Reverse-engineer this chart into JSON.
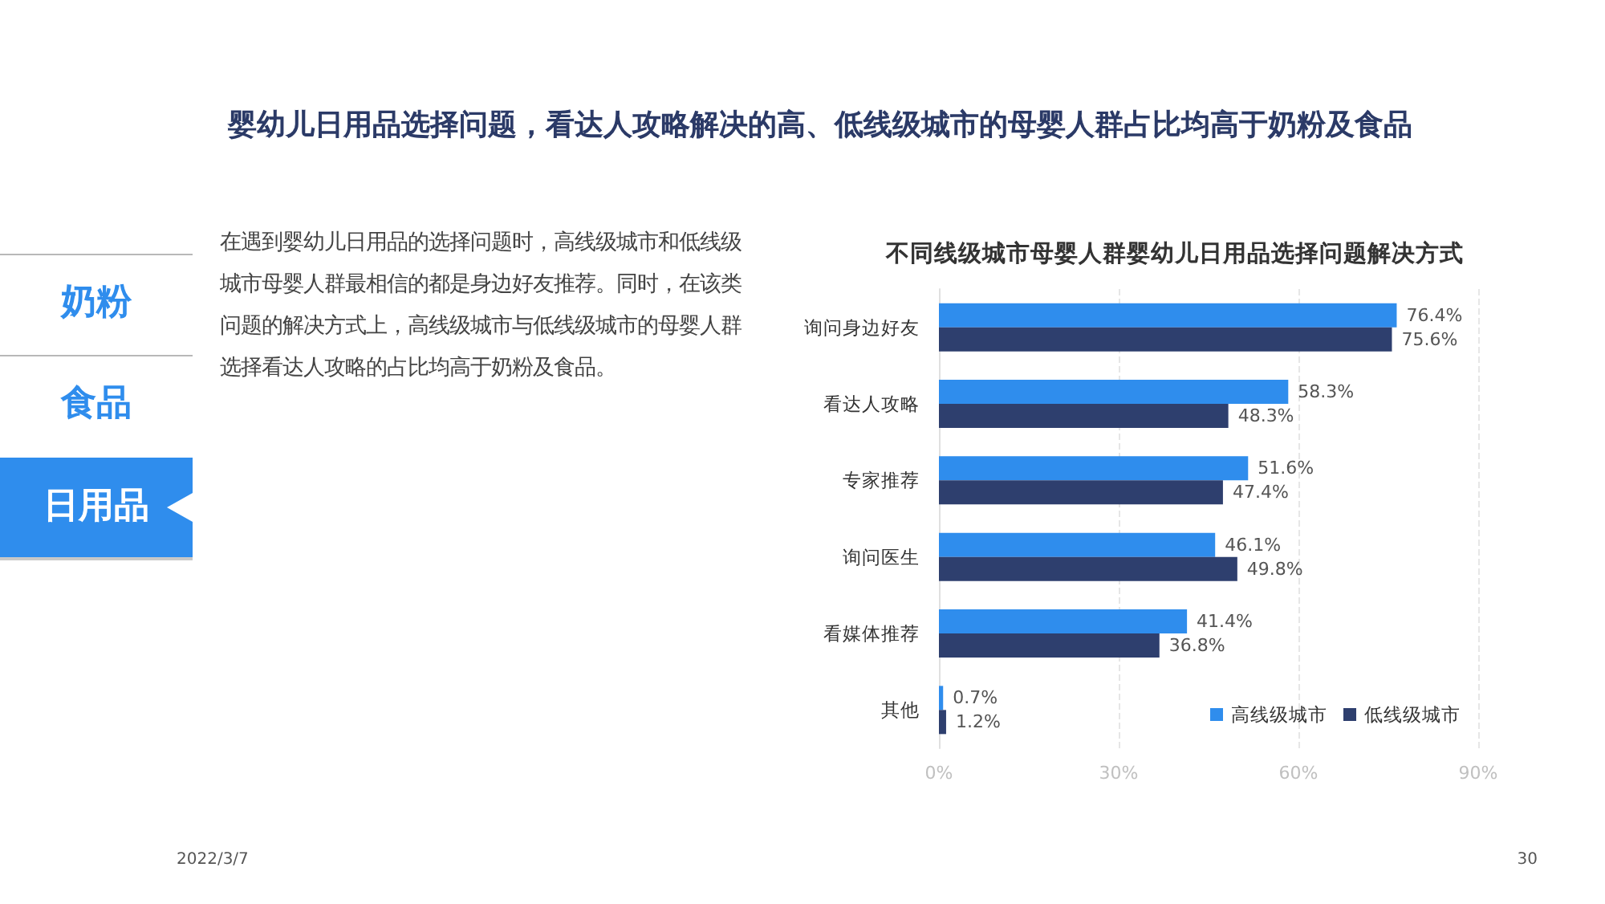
{
  "chart_data": {
    "type": "bar",
    "orientation": "horizontal",
    "title": "婴幼儿日用品选择问题，看达人攻略解决的高、低线级城市的母婴人群占比均高于奶粉及食品",
    "subtitle": "不同线级城市母婴人群婴幼儿日用品选择问题解决方式",
    "categories": [
      "询问身边好友",
      "看达人攻略",
      "专家推荐",
      "询问医生",
      "看媒体推荐",
      "其他"
    ],
    "series": [
      {
        "name": "高线级城市",
        "color": "#2f8ded",
        "values": [
          76.4,
          58.3,
          51.6,
          46.1,
          41.4,
          0.7
        ],
        "value_labels": [
          "76.4%",
          "58.3%",
          "51.6%",
          "46.1%",
          "41.4%",
          "0.7%"
        ]
      },
      {
        "name": "低线级城市",
        "color": "#2e3f6e",
        "values": [
          75.6,
          48.3,
          47.4,
          49.8,
          36.8,
          1.2
        ],
        "value_labels": [
          "75.6%",
          "48.3%",
          "47.4%",
          "49.8%",
          "36.8%",
          "1.2%"
        ]
      }
    ],
    "xlim": [
      0,
      90
    ],
    "xticks": [
      {
        "value": 0,
        "label": "0%"
      },
      {
        "value": 30,
        "label": "30%"
      },
      {
        "value": 60,
        "label": "60%"
      },
      {
        "value": 90,
        "label": "90%"
      }
    ],
    "grid": "x",
    "legend": "bottom right",
    "annotations": [
      "在遇到婴幼儿日用品的选择问题时，高线级城市和低线级城市母婴人群最相信的都是身边好友推荐。同时，在该类问题的解决方式上，高线级城市与低线级城市的母婴人群选择看达人攻略的占比均高于奶粉及食品。",
      "奶粉",
      "食品",
      "日用品",
      "2022/3/7",
      "30"
    ]
  }
}
